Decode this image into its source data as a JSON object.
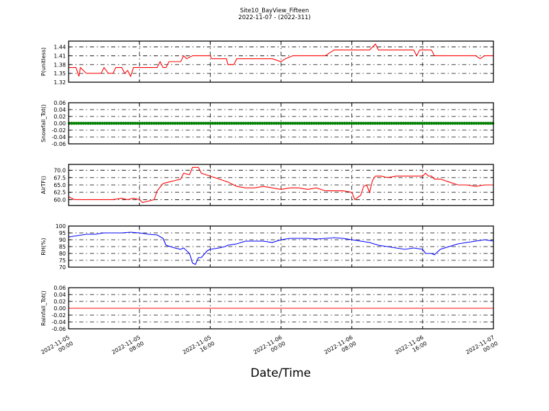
{
  "title": "Site10_BayView_Fifteen",
  "subtitle": "2022-11-07 - (2022-311)",
  "xlabel": "Date/Time",
  "chart_data": {
    "type": "line",
    "x_ticks": [
      {
        "value": "2022-11-05T00:00",
        "label_date": "2022-11-05",
        "label_time": "00:00"
      },
      {
        "value": "2022-11-05T08:00",
        "label_date": "2022-11-05",
        "label_time": "08:00"
      },
      {
        "value": "2022-11-05T16:00",
        "label_date": "2022-11-05",
        "label_time": "16:00"
      },
      {
        "value": "2022-11-06T00:00",
        "label_date": "2022-11-06",
        "label_time": "00:00"
      },
      {
        "value": "2022-11-06T08:00",
        "label_date": "2022-11-06",
        "label_time": "08:00"
      },
      {
        "value": "2022-11-06T16:00",
        "label_date": "2022-11-06",
        "label_time": "16:00"
      },
      {
        "value": "2022-11-07T00:00",
        "label_date": "2022-11-07",
        "label_time": "00:00"
      }
    ],
    "x_range": [
      "2022-11-05T00:00",
      "2022-11-07T00:00"
    ],
    "grid": true,
    "panels": [
      {
        "ylabel": "P(unitless)",
        "color": "#ff0000",
        "style": "line",
        "ylim": [
          1.32,
          1.46
        ],
        "yticks": [
          "1.32",
          "1.35",
          "1.38",
          "1.41",
          "1.44"
        ],
        "points": [
          [
            "2022-11-05T00:00",
            1.37
          ],
          [
            "2022-11-05T00:50",
            1.37
          ],
          [
            "2022-11-05T01:10",
            1.34
          ],
          [
            "2022-11-05T01:20",
            1.37
          ],
          [
            "2022-11-05T02:00",
            1.35
          ],
          [
            "2022-11-05T03:00",
            1.35
          ],
          [
            "2022-11-05T03:40",
            1.35
          ],
          [
            "2022-11-05T04:00",
            1.37
          ],
          [
            "2022-11-05T04:30",
            1.35
          ],
          [
            "2022-11-05T05:00",
            1.35
          ],
          [
            "2022-11-05T05:20",
            1.37
          ],
          [
            "2022-11-05T06:00",
            1.37
          ],
          [
            "2022-11-05T06:20",
            1.35
          ],
          [
            "2022-11-05T06:40",
            1.36
          ],
          [
            "2022-11-05T07:00",
            1.34
          ],
          [
            "2022-11-05T07:20",
            1.37
          ],
          [
            "2022-11-05T08:00",
            1.37
          ],
          [
            "2022-11-05T09:00",
            1.37
          ],
          [
            "2022-11-05T10:00",
            1.37
          ],
          [
            "2022-11-05T10:20",
            1.39
          ],
          [
            "2022-11-05T10:40",
            1.37
          ],
          [
            "2022-11-05T11:00",
            1.37
          ],
          [
            "2022-11-05T11:20",
            1.39
          ],
          [
            "2022-11-05T12:00",
            1.39
          ],
          [
            "2022-11-05T12:40",
            1.39
          ],
          [
            "2022-11-05T13:00",
            1.41
          ],
          [
            "2022-11-05T13:20",
            1.4
          ],
          [
            "2022-11-05T14:00",
            1.41
          ],
          [
            "2022-11-05T15:00",
            1.41
          ],
          [
            "2022-11-05T16:00",
            1.41
          ],
          [
            "2022-11-05T16:10",
            1.4
          ],
          [
            "2022-11-05T17:00",
            1.4
          ],
          [
            "2022-11-05T17:50",
            1.4
          ],
          [
            "2022-11-05T18:00",
            1.38
          ],
          [
            "2022-11-05T18:40",
            1.38
          ],
          [
            "2022-11-05T19:00",
            1.4
          ],
          [
            "2022-11-05T20:00",
            1.4
          ],
          [
            "2022-11-05T21:00",
            1.4
          ],
          [
            "2022-11-05T22:00",
            1.4
          ],
          [
            "2022-11-05T23:00",
            1.4
          ],
          [
            "2022-11-06T00:00",
            1.39
          ],
          [
            "2022-11-06T00:30",
            1.4
          ],
          [
            "2022-11-06T01:20",
            1.41
          ],
          [
            "2022-11-06T02:00",
            1.41
          ],
          [
            "2022-11-06T03:00",
            1.41
          ],
          [
            "2022-11-06T04:00",
            1.41
          ],
          [
            "2022-11-06T05:00",
            1.41
          ],
          [
            "2022-11-06T05:30",
            1.42
          ],
          [
            "2022-11-06T06:00",
            1.43
          ],
          [
            "2022-11-06T07:00",
            1.43
          ],
          [
            "2022-11-06T08:00",
            1.43
          ],
          [
            "2022-11-06T09:00",
            1.43
          ],
          [
            "2022-11-06T10:00",
            1.43
          ],
          [
            "2022-11-06T10:40",
            1.45
          ],
          [
            "2022-11-06T11:00",
            1.43
          ],
          [
            "2022-11-06T12:00",
            1.43
          ],
          [
            "2022-11-06T13:00",
            1.43
          ],
          [
            "2022-11-06T14:00",
            1.43
          ],
          [
            "2022-11-06T15:00",
            1.43
          ],
          [
            "2022-11-06T15:20",
            1.41
          ],
          [
            "2022-11-06T15:40",
            1.43
          ],
          [
            "2022-11-06T17:00",
            1.43
          ],
          [
            "2022-11-06T17:20",
            1.41
          ],
          [
            "2022-11-06T18:00",
            1.41
          ],
          [
            "2022-11-06T19:00",
            1.41
          ],
          [
            "2022-11-06T20:00",
            1.41
          ],
          [
            "2022-11-06T21:00",
            1.41
          ],
          [
            "2022-11-06T22:00",
            1.41
          ],
          [
            "2022-11-06T22:30",
            1.4
          ],
          [
            "2022-11-06T23:00",
            1.41
          ],
          [
            "2022-11-07T00:00",
            1.41
          ]
        ]
      },
      {
        "ylabel": "Snowfall_Tot()",
        "color": "#008000",
        "style": "dots",
        "ylim": [
          -0.06,
          0.06
        ],
        "yticks": [
          "-0.06",
          "-0.04",
          "-0.02",
          "0.00",
          "0.02",
          "0.04",
          "0.06"
        ],
        "constant": 0.0
      },
      {
        "ylabel": "AirTF()",
        "color": "#ff0000",
        "style": "line",
        "ylim": [
          58,
          72
        ],
        "yticks": [
          "60.0",
          "62.5",
          "65.0",
          "67.5",
          "70.0"
        ],
        "points": [
          [
            "2022-11-05T00:00",
            61.0
          ],
          [
            "2022-11-05T00:40",
            60.0
          ],
          [
            "2022-11-05T02:00",
            60.0
          ],
          [
            "2022-11-05T03:00",
            60.0
          ],
          [
            "2022-11-05T04:00",
            60.0
          ],
          [
            "2022-11-05T05:00",
            60.0
          ],
          [
            "2022-11-05T06:00",
            60.5
          ],
          [
            "2022-11-05T06:40",
            60.0
          ],
          [
            "2022-11-05T07:20",
            60.5
          ],
          [
            "2022-11-05T08:00",
            60.0
          ],
          [
            "2022-11-05T08:20",
            59.0
          ],
          [
            "2022-11-05T09:00",
            59.5
          ],
          [
            "2022-11-05T09:40",
            60.0
          ],
          [
            "2022-11-05T10:00",
            63.0
          ],
          [
            "2022-11-05T10:40",
            65.5
          ],
          [
            "2022-11-05T11:20",
            66.0
          ],
          [
            "2022-11-05T12:00",
            66.5
          ],
          [
            "2022-11-05T12:40",
            67.0
          ],
          [
            "2022-11-05T13:00",
            69.0
          ],
          [
            "2022-11-05T13:40",
            68.5
          ],
          [
            "2022-11-05T14:00",
            71.0
          ],
          [
            "2022-11-05T14:40",
            71.0
          ],
          [
            "2022-11-05T15:00",
            69.0
          ],
          [
            "2022-11-05T16:00",
            68.0
          ],
          [
            "2022-11-05T17:00",
            67.0
          ],
          [
            "2022-11-05T18:00",
            66.0
          ],
          [
            "2022-11-05T19:00",
            64.5
          ],
          [
            "2022-11-05T20:00",
            64.0
          ],
          [
            "2022-11-05T21:00",
            64.0
          ],
          [
            "2022-11-05T22:00",
            64.5
          ],
          [
            "2022-11-05T23:00",
            64.0
          ],
          [
            "2022-11-06T00:00",
            63.5
          ],
          [
            "2022-11-06T01:00",
            64.0
          ],
          [
            "2022-11-06T02:00",
            64.0
          ],
          [
            "2022-11-06T03:00",
            63.5
          ],
          [
            "2022-11-06T04:00",
            64.0
          ],
          [
            "2022-11-06T05:00",
            63.0
          ],
          [
            "2022-11-06T06:00",
            63.0
          ],
          [
            "2022-11-06T07:00",
            63.0
          ],
          [
            "2022-11-06T08:00",
            62.5
          ],
          [
            "2022-11-06T08:20",
            60.0
          ],
          [
            "2022-11-06T09:00",
            61.5
          ],
          [
            "2022-11-06T09:20",
            64.5
          ],
          [
            "2022-11-06T09:40",
            65.0
          ],
          [
            "2022-11-06T10:00",
            62.5
          ],
          [
            "2022-11-06T10:20",
            66.5
          ],
          [
            "2022-11-06T10:40",
            68.0
          ],
          [
            "2022-11-06T11:20",
            68.0
          ],
          [
            "2022-11-06T12:00",
            67.5
          ],
          [
            "2022-11-06T13:00",
            68.0
          ],
          [
            "2022-11-06T14:00",
            68.0
          ],
          [
            "2022-11-06T15:00",
            68.0
          ],
          [
            "2022-11-06T16:00",
            68.0
          ],
          [
            "2022-11-06T16:20",
            69.0
          ],
          [
            "2022-11-06T16:40",
            68.0
          ],
          [
            "2022-11-06T17:00",
            68.0
          ],
          [
            "2022-11-06T17:20",
            67.0
          ],
          [
            "2022-11-06T18:00",
            67.0
          ],
          [
            "2022-11-06T19:00",
            66.0
          ],
          [
            "2022-11-06T20:00",
            65.0
          ],
          [
            "2022-11-06T21:00",
            65.0
          ],
          [
            "2022-11-06T22:00",
            64.5
          ],
          [
            "2022-11-06T23:00",
            65.0
          ],
          [
            "2022-11-07T00:00",
            65.0
          ]
        ]
      },
      {
        "ylabel": "RH(%)",
        "color": "#0000ff",
        "style": "line",
        "ylim": [
          70,
          100
        ],
        "yticks": [
          "70",
          "75",
          "80",
          "85",
          "90",
          "95",
          "100"
        ],
        "points": [
          [
            "2022-11-05T00:00",
            92
          ],
          [
            "2022-11-05T01:00",
            93
          ],
          [
            "2022-11-05T02:00",
            94
          ],
          [
            "2022-11-05T03:00",
            94
          ],
          [
            "2022-11-05T04:00",
            95
          ],
          [
            "2022-11-05T05:00",
            95
          ],
          [
            "2022-11-05T06:00",
            95
          ],
          [
            "2022-11-05T07:00",
            95.5
          ],
          [
            "2022-11-05T08:00",
            95
          ],
          [
            "2022-11-05T09:00",
            94
          ],
          [
            "2022-11-05T10:00",
            93.5
          ],
          [
            "2022-11-05T10:40",
            91
          ],
          [
            "2022-11-05T11:00",
            86
          ],
          [
            "2022-11-05T12:00",
            84
          ],
          [
            "2022-11-05T12:40",
            83
          ],
          [
            "2022-11-05T13:00",
            84
          ],
          [
            "2022-11-05T13:40",
            80
          ],
          [
            "2022-11-05T14:00",
            73
          ],
          [
            "2022-11-05T14:20",
            72
          ],
          [
            "2022-11-05T14:40",
            77
          ],
          [
            "2022-11-05T15:00",
            77
          ],
          [
            "2022-11-05T15:40",
            82
          ],
          [
            "2022-11-05T16:00",
            83
          ],
          [
            "2022-11-05T17:00",
            84
          ],
          [
            "2022-11-05T17:40",
            85
          ],
          [
            "2022-11-05T18:00",
            86
          ],
          [
            "2022-11-05T19:00",
            87
          ],
          [
            "2022-11-05T20:00",
            89
          ],
          [
            "2022-11-05T21:00",
            89
          ],
          [
            "2022-11-05T22:00",
            89
          ],
          [
            "2022-11-05T23:00",
            88
          ],
          [
            "2022-11-06T00:00",
            90
          ],
          [
            "2022-11-06T01:00",
            91
          ],
          [
            "2022-11-06T02:00",
            91
          ],
          [
            "2022-11-06T03:00",
            91
          ],
          [
            "2022-11-06T04:00",
            90.5
          ],
          [
            "2022-11-06T05:00",
            91
          ],
          [
            "2022-11-06T06:00",
            91.5
          ],
          [
            "2022-11-06T07:00",
            91
          ],
          [
            "2022-11-06T08:00",
            90
          ],
          [
            "2022-11-06T09:00",
            89
          ],
          [
            "2022-11-06T10:00",
            88
          ],
          [
            "2022-11-06T11:00",
            86
          ],
          [
            "2022-11-06T12:00",
            85
          ],
          [
            "2022-11-06T13:00",
            84
          ],
          [
            "2022-11-06T14:00",
            83
          ],
          [
            "2022-11-06T15:00",
            84
          ],
          [
            "2022-11-06T16:00",
            83
          ],
          [
            "2022-11-06T16:20",
            80
          ],
          [
            "2022-11-06T17:00",
            80
          ],
          [
            "2022-11-06T17:20",
            79
          ],
          [
            "2022-11-06T18:00",
            83
          ],
          [
            "2022-11-06T19:00",
            85
          ],
          [
            "2022-11-06T20:00",
            87
          ],
          [
            "2022-11-06T21:00",
            88
          ],
          [
            "2022-11-06T22:00",
            89
          ],
          [
            "2022-11-06T23:00",
            90
          ],
          [
            "2022-11-07T00:00",
            89
          ]
        ]
      },
      {
        "ylabel": "Rainfall_Tot()",
        "color": "#ff0000",
        "style": "line",
        "ylim": [
          -0.06,
          0.06
        ],
        "yticks": [
          "-0.06",
          "-0.04",
          "-0.02",
          "0.00",
          "0.02",
          "0.04",
          "0.06"
        ],
        "points": [
          [
            "2022-11-05T00:00",
            0.0
          ],
          [
            "2022-11-07T00:00",
            0.0
          ]
        ]
      }
    ]
  }
}
